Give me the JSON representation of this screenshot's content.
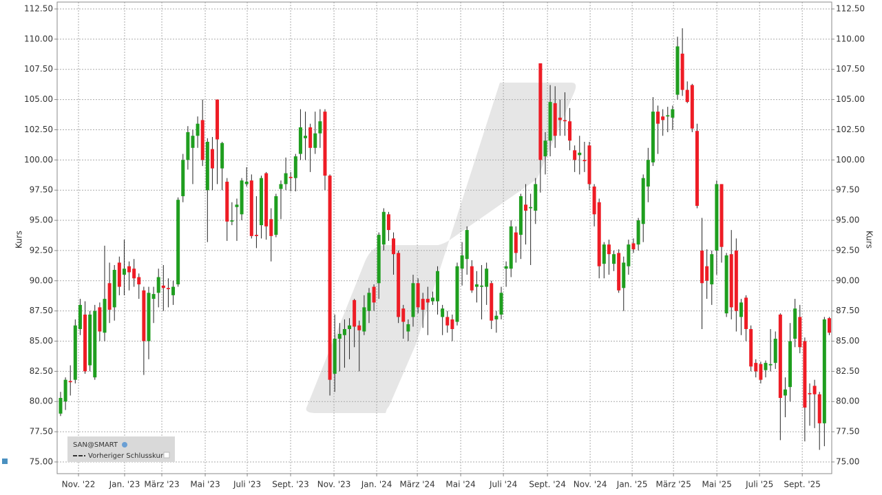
{
  "chart_data": {
    "type": "candlestick",
    "y_label": "Kurs",
    "series_name": "SAN@SMART",
    "reference_label": "Vorheriger Schlusskurs",
    "up_color": "#1f9e1f",
    "down_color": "#ee1c25",
    "grid": true,
    "xlim": [
      -0.7,
      157.5
    ],
    "ylim": [
      74.03,
      113.07
    ],
    "yticks": [
      {
        "value": 75,
        "label": "75.00"
      },
      {
        "value": 77.5,
        "label": "77.50"
      },
      {
        "value": 80,
        "label": "80.00"
      },
      {
        "value": 82.5,
        "label": "82.50"
      },
      {
        "value": 85,
        "label": "85.00"
      },
      {
        "value": 87.5,
        "label": "87.50"
      },
      {
        "value": 90,
        "label": "90.00"
      },
      {
        "value": 92.5,
        "label": "92.50"
      },
      {
        "value": 95,
        "label": "95.00"
      },
      {
        "value": 97.5,
        "label": "97.50"
      },
      {
        "value": 100,
        "label": "100.00"
      },
      {
        "value": 102.5,
        "label": "102.50"
      },
      {
        "value": 105,
        "label": "105.00"
      },
      {
        "value": 107.5,
        "label": "107.50"
      },
      {
        "value": 110,
        "label": "110.00"
      },
      {
        "value": 112.5,
        "label": "112.50"
      }
    ],
    "xticks": [
      {
        "value": 3.66,
        "label": "Nov. '22"
      },
      {
        "value": 13.08,
        "label": "Jan. '23"
      },
      {
        "value": 20.68,
        "label": "März '23"
      },
      {
        "value": 29.54,
        "label": "Mai '23"
      },
      {
        "value": 38.12,
        "label": "Juli '23"
      },
      {
        "value": 46.98,
        "label": "Sept. '23"
      },
      {
        "value": 55.84,
        "label": "Nov. '23"
      },
      {
        "value": 64.56,
        "label": "Jan. '24"
      },
      {
        "value": 72.86,
        "label": "März '24"
      },
      {
        "value": 81.72,
        "label": "Mai '24"
      },
      {
        "value": 90.44,
        "label": "Juli '24"
      },
      {
        "value": 99.44,
        "label": "Sept. '24"
      },
      {
        "value": 108.16,
        "label": "Nov. '24"
      },
      {
        "value": 116.74,
        "label": "Jan. '25"
      },
      {
        "value": 125.18,
        "label": "März '25"
      },
      {
        "value": 134.04,
        "label": "Mai '25"
      },
      {
        "value": 142.76,
        "label": "Juli '25"
      },
      {
        "value": 151.48,
        "label": "Sept. '25"
      }
    ],
    "open": [
      79.0,
      80.0,
      81.7,
      81.8,
      86.0,
      87.2,
      83.0,
      82.0,
      87.8,
      85.7,
      89.8,
      87.8,
      91.5,
      90.5,
      91.2,
      91.0,
      90.3,
      89.2,
      85.0,
      88.5,
      89.0,
      89.6,
      89.4,
      88.8,
      89.7,
      97.0,
      100.0,
      101.0,
      102.0,
      103.3,
      97.5,
      100.9,
      105.0,
      99.3,
      98.2,
      94.9,
      96.1,
      95.5,
      98.0,
      98.3,
      93.8,
      94.6,
      98.9,
      95.1,
      93.8,
      97.6,
      98.0,
      98.6,
      98.5,
      100.5,
      101.8,
      102.7,
      101.0,
      102.2,
      104.0,
      98.7,
      82.3,
      85.2,
      85.5,
      86.0,
      88.4,
      86.3,
      85.8,
      87.5,
      89.5,
      89.8,
      93.0,
      95.5,
      93.5,
      92.3,
      87.7,
      85.8,
      87.0,
      89.8,
      88.5,
      88.5,
      88.3,
      88.3,
      87.0,
      87.0,
      86.8,
      86.6,
      91.0,
      91.8,
      91.2,
      89.5,
      89.5,
      89.5,
      89.8,
      86.8,
      87.2,
      91.0,
      91.0,
      94.0,
      93.8,
      96.3,
      96.0,
      95.8,
      108.0,
      100.3,
      101.6,
      104.7,
      103.5,
      103.3,
      103.2,
      100.8,
      100.4,
      100.0,
      101.2,
      97.8,
      96.5,
      91.4,
      93.0,
      91.4,
      92.3,
      89.4,
      91.2,
      93.1,
      93.0,
      94.7,
      97.8,
      99.8,
      104.0,
      103.6,
      103.6,
      103.5,
      105.4,
      108.8,
      105.8,
      106.2,
      102.4,
      92.5,
      91.2,
      89.7,
      92.5,
      98.0,
      87.3,
      92.2,
      92.5,
      87.0,
      88.6,
      86.0,
      83.2,
      83.1,
      82.6,
      83.0,
      83.2,
      87.2,
      80.5,
      81.2,
      85.2,
      87.0,
      85.0,
      80.7,
      81.3,
      80.6,
      78.2,
      86.9
    ],
    "high": [
      80.8,
      82.0,
      83.0,
      86.8,
      88.5,
      88.3,
      87.5,
      88.0,
      88.2,
      92.9,
      91.5,
      91.3,
      92.0,
      93.4,
      91.6,
      91.8,
      90.6,
      89.5,
      89.5,
      89.5,
      91.0,
      91.3,
      90.2,
      90.0,
      96.9,
      100.5,
      102.8,
      102.5,
      103.6,
      105.0,
      101.8,
      101.9,
      105.0,
      101.5,
      98.5,
      96.5,
      96.8,
      98.5,
      99.4,
      98.8,
      97.0,
      98.7,
      99.0,
      96.0,
      97.2,
      98.3,
      100.2,
      99.0,
      100.5,
      104.2,
      104.0,
      103.0,
      104.0,
      104.2,
      104.2,
      98.8,
      87.2,
      86.5,
      86.8,
      86.9,
      88.5,
      86.7,
      88.8,
      89.4,
      89.7,
      94.0,
      96.0,
      95.7,
      94.0,
      92.5,
      88.0,
      86.8,
      90.5,
      90.2,
      89.0,
      89.5,
      89.1,
      91.2,
      88.0,
      87.5,
      87.2,
      91.5,
      93.2,
      94.5,
      91.7,
      90.8,
      91.3,
      91.5,
      90.0,
      87.5,
      89.5,
      91.6,
      95.0,
      94.5,
      97.2,
      98.0,
      97.2,
      98.5,
      108.0,
      102.3,
      106.2,
      106.1,
      105.0,
      105.6,
      104.3,
      101.2,
      102.0,
      101.5,
      101.5,
      98.0,
      96.8,
      93.2,
      93.4,
      92.5,
      92.6,
      92.0,
      93.4,
      93.5,
      95.2,
      98.8,
      101.0,
      105.2,
      104.5,
      104.2,
      104.4,
      104.5,
      110.2,
      110.9,
      106.5,
      106.3,
      103.0,
      95.2,
      92.6,
      92.5,
      98.3,
      98.0,
      92.3,
      94.2,
      93.5,
      88.5,
      88.8,
      86.3,
      83.5,
      83.3,
      83.4,
      86.0,
      85.8,
      87.3,
      82.0,
      86.5,
      88.5,
      88.0,
      85.3,
      81.5,
      81.8,
      80.8,
      87.0,
      87.0
    ],
    "low": [
      78.8,
      79.3,
      80.5,
      81.5,
      85.5,
      82.3,
      82.5,
      81.8,
      85.0,
      85.0,
      86.5,
      86.7,
      88.8,
      88.8,
      89.2,
      89.5,
      88.5,
      82.2,
      83.5,
      86.5,
      87.8,
      87.5,
      87.8,
      88.0,
      89.5,
      96.5,
      99.2,
      98.0,
      101.0,
      99.5,
      93.2,
      97.5,
      98.0,
      97.5,
      93.3,
      94.6,
      93.3,
      95.0,
      97.8,
      93.5,
      92.7,
      93.5,
      93.4,
      91.6,
      93.6,
      95.1,
      97.5,
      97.4,
      97.4,
      100.0,
      100.0,
      99.0,
      100.5,
      101.0,
      97.5,
      80.5,
      80.8,
      82.5,
      82.8,
      83.5,
      84.5,
      82.5,
      85.5,
      86.5,
      87.5,
      88.5,
      92.5,
      93.3,
      90.5,
      86.5,
      85.2,
      85.0,
      86.2,
      87.3,
      86.1,
      85.5,
      88.0,
      87.2,
      85.5,
      85.7,
      85.0,
      86.3,
      89.6,
      90.5,
      89.0,
      88.2,
      86.8,
      88.0,
      86.0,
      85.7,
      86.8,
      89.5,
      90.3,
      91.5,
      91.8,
      93.0,
      91.3,
      94.7,
      97.3,
      98.8,
      100.3,
      101.0,
      102.0,
      102.0,
      100.8,
      99.0,
      98.8,
      99.0,
      97.5,
      94.5,
      90.2,
      90.2,
      90.5,
      90.8,
      89.0,
      87.5,
      90.5,
      92.3,
      92.5,
      93.2,
      96.5,
      99.5,
      100.5,
      102.0,
      102.3,
      102.5,
      105.0,
      105.3,
      104.7,
      102.3,
      96.0,
      86.0,
      88.5,
      88.0,
      90.5,
      91.5,
      87.0,
      86.8,
      85.8,
      85.5,
      85.0,
      82.5,
      82.0,
      81.5,
      82.0,
      82.5,
      82.7,
      76.8,
      78.7,
      80.0,
      84.5,
      84.0,
      76.7,
      78.0,
      77.8,
      76.0,
      76.3,
      85.5
    ],
    "close": [
      80.3,
      81.8,
      81.6,
      86.3,
      88.0,
      82.5,
      87.2,
      87.5,
      85.8,
      88.5,
      87.6,
      90.9,
      89.5,
      91.0,
      90.7,
      90.2,
      89.7,
      85.0,
      89.0,
      88.9,
      90.3,
      89.4,
      89.3,
      89.5,
      96.7,
      100.0,
      102.3,
      102.0,
      103.0,
      100.0,
      101.5,
      99.3,
      101.7,
      101.4,
      94.9,
      95.0,
      96.3,
      98.3,
      98.2,
      93.7,
      93.7,
      98.5,
      94.5,
      93.7,
      97.0,
      98.0,
      98.9,
      98.5,
      100.3,
      102.7,
      102.0,
      101.0,
      102.2,
      103.2,
      98.7,
      81.8,
      85.2,
      85.6,
      86.0,
      86.3,
      86.2,
      85.9,
      87.8,
      89.0,
      88.2,
      93.8,
      95.7,
      94.2,
      92.2,
      87.0,
      86.6,
      86.4,
      89.8,
      87.8,
      87.6,
      88.2,
      88.6,
      90.8,
      87.7,
      86.3,
      86.0,
      91.2,
      92.1,
      94.2,
      89.2,
      89.7,
      89.6,
      91.0,
      86.7,
      87.1,
      89.0,
      91.2,
      94.5,
      92.3,
      97.0,
      95.8,
      96.1,
      98.0,
      100.0,
      101.6,
      104.8,
      102.0,
      103.3,
      103.2,
      101.6,
      100.0,
      100.6,
      99.9,
      98.0,
      95.5,
      91.2,
      93.0,
      92.2,
      92.2,
      89.2,
      91.5,
      93.0,
      92.6,
      95.0,
      98.5,
      100.0,
      104.0,
      103.0,
      103.3,
      103.7,
      104.2,
      109.4,
      105.8,
      104.8,
      102.6,
      96.2,
      89.8,
      90.0,
      92.2,
      98.0,
      92.8,
      92.1,
      87.8,
      87.5,
      88.2,
      86.0,
      82.9,
      82.5,
      81.8,
      83.2,
      83.1,
      85.2,
      80.3,
      81.0,
      85.0,
      87.7,
      84.5,
      79.5,
      80.6,
      80.6,
      78.2,
      86.8,
      85.7
    ]
  }
}
